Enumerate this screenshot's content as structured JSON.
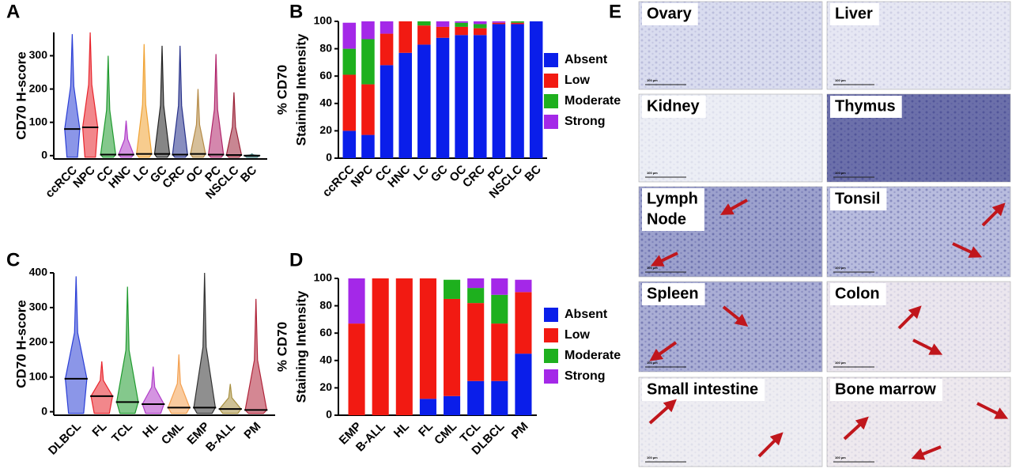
{
  "chart_data": [
    {
      "panel": "A",
      "type": "violin",
      "y_label": [
        "CD70 H-score"
      ],
      "categories": [
        "ccRCC",
        "NPC",
        "CC",
        "HNC",
        "LC",
        "GC",
        "CRC",
        "OC",
        "PC",
        "NSCLC",
        "BC"
      ],
      "values": [
        80,
        85,
        3,
        3,
        5,
        5,
        3,
        5,
        3,
        2,
        0
      ],
      "max": [
        365,
        370,
        300,
        105,
        335,
        330,
        330,
        200,
        305,
        190,
        5
      ],
      "colors": [
        "#2b3fd6",
        "#e8242c",
        "#1f9a2e",
        "#b03cc8",
        "#f0a232",
        "#222222",
        "#27318a",
        "#b58a45",
        "#b0246a",
        "#9b2338",
        "#2f6f6f"
      ],
      "ylim": [
        -10,
        370
      ],
      "yticks": [
        0,
        100,
        200,
        300
      ]
    },
    {
      "panel": "B",
      "type": "stacked_bar",
      "y_label": [
        "% CD70",
        "Staining Intensity"
      ],
      "categories": [
        "ccRCC",
        "NPC",
        "CC",
        "HNC",
        "LC",
        "GC",
        "OC",
        "CRC",
        "PC",
        "NSCLC",
        "BC"
      ],
      "series": [
        {
          "name": "Absent",
          "color": "#0a1eea",
          "values": [
            20,
            17,
            68,
            77,
            83,
            88,
            90,
            90,
            98,
            98,
            100
          ]
        },
        {
          "name": "Low",
          "color": "#f21a12",
          "values": [
            41,
            37,
            23,
            23,
            14,
            8,
            6,
            5,
            1,
            1,
            0
          ]
        },
        {
          "name": "Moderate",
          "color": "#1eb01e",
          "values": [
            19,
            33,
            0,
            0,
            3,
            0,
            3,
            3,
            0,
            1,
            0
          ]
        },
        {
          "name": "Strong",
          "color": "#a428e8",
          "values": [
            19,
            13,
            9,
            0,
            0,
            4,
            1,
            2,
            1,
            0,
            0
          ]
        }
      ],
      "ylim": [
        0,
        100
      ],
      "yticks": [
        0,
        20,
        40,
        60,
        80,
        100
      ]
    },
    {
      "panel": "C",
      "type": "violin",
      "y_label": [
        "CD70 H-score"
      ],
      "categories": [
        "DLBCL",
        "FL",
        "TCL",
        "HL",
        "CML",
        "EMP",
        "B-ALL",
        "PM"
      ],
      "values": [
        95,
        45,
        28,
        22,
        12,
        12,
        8,
        5
      ],
      "max": [
        390,
        145,
        360,
        130,
        165,
        400,
        80,
        325
      ],
      "colors": [
        "#2b3fd6",
        "#e8242c",
        "#1f9a2e",
        "#b03cc8",
        "#f4a050",
        "#333333",
        "#a89040",
        "#b0243a"
      ],
      "ylim": [
        -10,
        400
      ],
      "yticks": [
        0,
        100,
        200,
        300,
        400
      ]
    },
    {
      "panel": "D",
      "type": "stacked_bar",
      "y_label": [
        "% CD70",
        "Staining Intensity"
      ],
      "categories": [
        "EMP",
        "B-ALL",
        "HL",
        "FL",
        "CML",
        "TCL",
        "DLBCL",
        "PM"
      ],
      "series": [
        {
          "name": "Absent",
          "color": "#0a1eea",
          "values": [
            0,
            0,
            0,
            12,
            14,
            25,
            25,
            45
          ]
        },
        {
          "name": "Low",
          "color": "#f21a12",
          "values": [
            67,
            100,
            100,
            88,
            71,
            57,
            42,
            45
          ]
        },
        {
          "name": "Moderate",
          "color": "#1eb01e",
          "values": [
            0,
            0,
            0,
            0,
            14,
            11,
            21,
            0
          ]
        },
        {
          "name": "Strong",
          "color": "#a428e8",
          "values": [
            33,
            0,
            0,
            0,
            0,
            7,
            12,
            9
          ]
        }
      ],
      "ylim": [
        0,
        100
      ],
      "yticks": [
        0,
        20,
        40,
        60,
        80,
        100
      ]
    }
  ],
  "image_panel": {
    "panel": "E",
    "scale_label": "100 µm",
    "tiles": [
      {
        "label": [
          "Ovary"
        ]
      },
      {
        "label": [
          "Liver"
        ]
      },
      {
        "label": [
          "Kidney"
        ]
      },
      {
        "label": [
          "Thymus"
        ]
      },
      {
        "label": [
          "Lymph",
          "Node"
        ]
      },
      {
        "label": [
          "Tonsil"
        ]
      },
      {
        "label": [
          "Spleen"
        ]
      },
      {
        "label": [
          "Colon"
        ]
      },
      {
        "label": [
          "Small intestine"
        ]
      },
      {
        "label": [
          "Bone marrow"
        ]
      }
    ]
  }
}
